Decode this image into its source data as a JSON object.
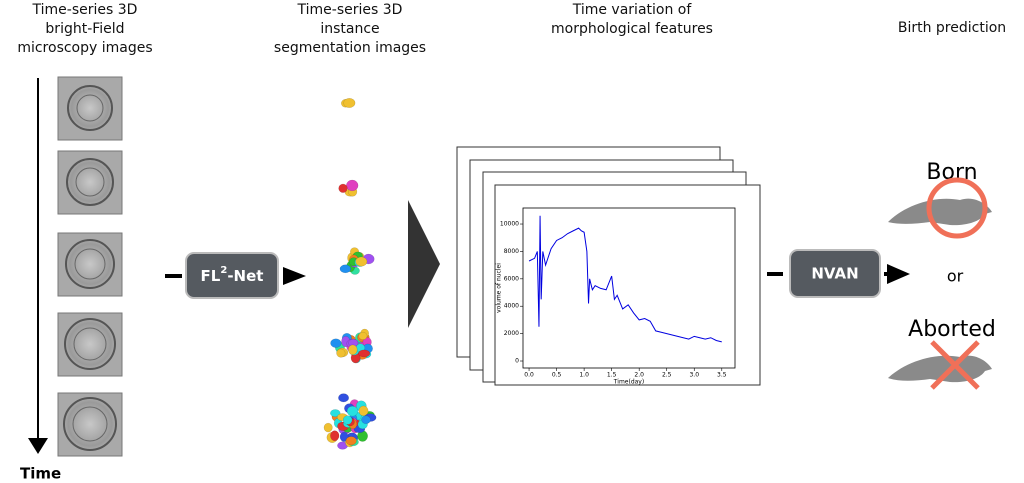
{
  "headers": [
    [
      "Time-series 3D",
      "bright-Field",
      "microscopy images"
    ],
    [
      "Time-series 3D",
      "instance",
      "segmentation images"
    ],
    [
      "Time variation of",
      "morphological features"
    ],
    [
      "Birth prediction"
    ]
  ],
  "time_label": "Time",
  "fl2net": [
    "FL",
    "2",
    "-Net"
  ],
  "nvan": "NVAN",
  "born": "Born",
  "or": "or",
  "aborted": "Aborted",
  "chart_data": {
    "type": "line",
    "xlabel": "Time(day)",
    "ylabel": "volume of nuclei",
    "x": [
      0,
      0.1,
      0.15,
      0.18,
      0.2,
      0.22,
      0.25,
      0.3,
      0.4,
      0.5,
      0.6,
      0.7,
      0.8,
      0.9,
      0.95,
      1.0,
      1.05,
      1.08,
      1.1,
      1.15,
      1.2,
      1.3,
      1.4,
      1.5,
      1.55,
      1.6,
      1.7,
      1.8,
      1.9,
      2.0,
      2.1,
      2.2,
      2.3,
      2.4,
      2.5,
      2.6,
      2.7,
      2.8,
      2.9,
      3.0,
      3.1,
      3.2,
      3.3,
      3.4,
      3.5
    ],
    "series": [
      {
        "color": "#0000e0",
        "values": [
          7300,
          7500,
          8000,
          2500,
          10600,
          4500,
          8000,
          7000,
          8200,
          8800,
          9000,
          9300,
          9500,
          9700,
          9500,
          9400,
          8000,
          4200,
          6000,
          5200,
          5500,
          5300,
          5200,
          6200,
          4500,
          4800,
          3800,
          4100,
          3500,
          3000,
          3100,
          2900,
          2200,
          2100,
          2000,
          1900,
          1800,
          1700,
          1600,
          1800,
          1700,
          1600,
          1700,
          1500,
          1400
        ]
      }
    ],
    "xlim": [
      -0.11,
      3.74
    ],
    "ylim": [
      -510,
      11170
    ],
    "xticks": [
      {
        "value": 0,
        "label": "0.0"
      },
      0.5,
      {
        "value": 1,
        "label": "1.0"
      },
      1.5,
      {
        "value": 2,
        "label": "2.0"
      },
      2.5,
      {
        "value": 3,
        "label": "3.0"
      },
      3.5
    ],
    "yticks": [
      0,
      2000,
      4000,
      6000,
      8000,
      10000
    ]
  }
}
